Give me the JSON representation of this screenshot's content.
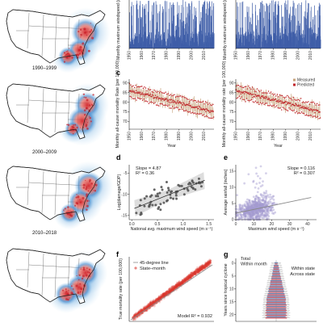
{
  "maps": {
    "periods": [
      "1990–1999",
      "2000–2009",
      "2010–2018"
    ]
  },
  "chart_data": [
    {
      "id": "a",
      "type": "bar",
      "ylabel": "Monthly maximum windspeed (m s⁻¹)",
      "xticks": [
        "1950",
        "1960",
        "1970",
        "1980",
        "1990",
        "2000",
        "2010"
      ],
      "xlim": [
        1950,
        2018
      ],
      "color": "#3f5ea8"
    },
    {
      "id": "b",
      "type": "bar",
      "ylabel": "Monthly maximum windspeed (m s⁻¹)",
      "xticks": [
        "1950",
        "1960",
        "1970",
        "1980",
        "1990",
        "2000",
        "2010"
      ],
      "xlim": [
        1950,
        2018
      ],
      "color": "#3f5ea8"
    },
    {
      "id": "c",
      "panel_letter": "c",
      "type": "line",
      "ylabel": "Monthly all-cause mortality Rate (per 100,000)",
      "xlabel": "Year",
      "xticks": [
        "1950",
        "1960",
        "1970",
        "1980",
        "1990",
        "2000",
        "2010"
      ],
      "yticks": [
        "70",
        "75",
        "80",
        "85",
        "90"
      ],
      "ylim": [
        66,
        92
      ],
      "series": [
        {
          "name": "Measured",
          "color": "#c6a27a"
        },
        {
          "name": "Predicted",
          "color": "#c1272d"
        }
      ]
    },
    {
      "id": "c2",
      "type": "line",
      "ylabel": "Monthly all-cause mortality rate (per 100,000)",
      "xlabel": "Year",
      "xticks": [
        "1950",
        "1960",
        "1970",
        "1980",
        "1990",
        "2000",
        "2010"
      ],
      "yticks": [
        "70",
        "75",
        "80",
        "85",
        "90"
      ],
      "ylim": [
        66,
        92
      ],
      "series": [
        {
          "name": "Measured",
          "color": "#c6a27a"
        },
        {
          "name": "Predicted",
          "color": "#c1272d"
        }
      ]
    },
    {
      "id": "d",
      "panel_letter": "d",
      "type": "scatter",
      "xlabel": "National avg. maximum wind speed (m s⁻¹)",
      "ylabel": "Log(damage/GDP)",
      "xticks": [
        "0.0",
        "0.5",
        "1.0",
        "1.5"
      ],
      "yticks": [
        "-15",
        "-10",
        "-5"
      ],
      "xlim": [
        -0.05,
        1.6
      ],
      "ylim": [
        -16,
        -3
      ],
      "annotations": [
        "Slope = 4.87",
        "R² = 0.36"
      ],
      "fit": {
        "slope": 4.87,
        "intercept": -13.6
      },
      "color": "#555555"
    },
    {
      "id": "e",
      "panel_letter": "e",
      "type": "scatter",
      "xlabel": "Maximum wind speed (m s⁻¹)",
      "ylabel": "Average rainfall (inches)",
      "xticks": [
        "0",
        "10",
        "20",
        "30",
        "40"
      ],
      "yticks": [
        "0",
        "5",
        "10",
        "15"
      ],
      "xlim": [
        0,
        45
      ],
      "ylim": [
        0,
        17
      ],
      "annotations": [
        "Slope = 0.116",
        "R² = 0.307"
      ],
      "fit": {
        "slope": 0.116,
        "intercept": 2.0
      },
      "color": "#a49bd0"
    },
    {
      "id": "f",
      "panel_letter": "f",
      "type": "scatter",
      "ylabel": "True mortality rate (per 100,000)",
      "legend": [
        "45-degree line",
        "State–month"
      ],
      "annotations": [
        "Model R² = 0.932"
      ],
      "color": "#d9372f"
    },
    {
      "id": "g",
      "panel_letter": "g",
      "type": "bar",
      "ylabel": "Years since tropical cyclone",
      "yticks": [
        "0",
        "5",
        "10",
        "15",
        "20"
      ],
      "labels": [
        "Total",
        "Within month",
        "Within state",
        "Across state"
      ],
      "series": [
        {
          "name": "Within state",
          "color": "#7a93c8"
        },
        {
          "name": "Across state",
          "color": "#e06a78"
        }
      ]
    }
  ]
}
